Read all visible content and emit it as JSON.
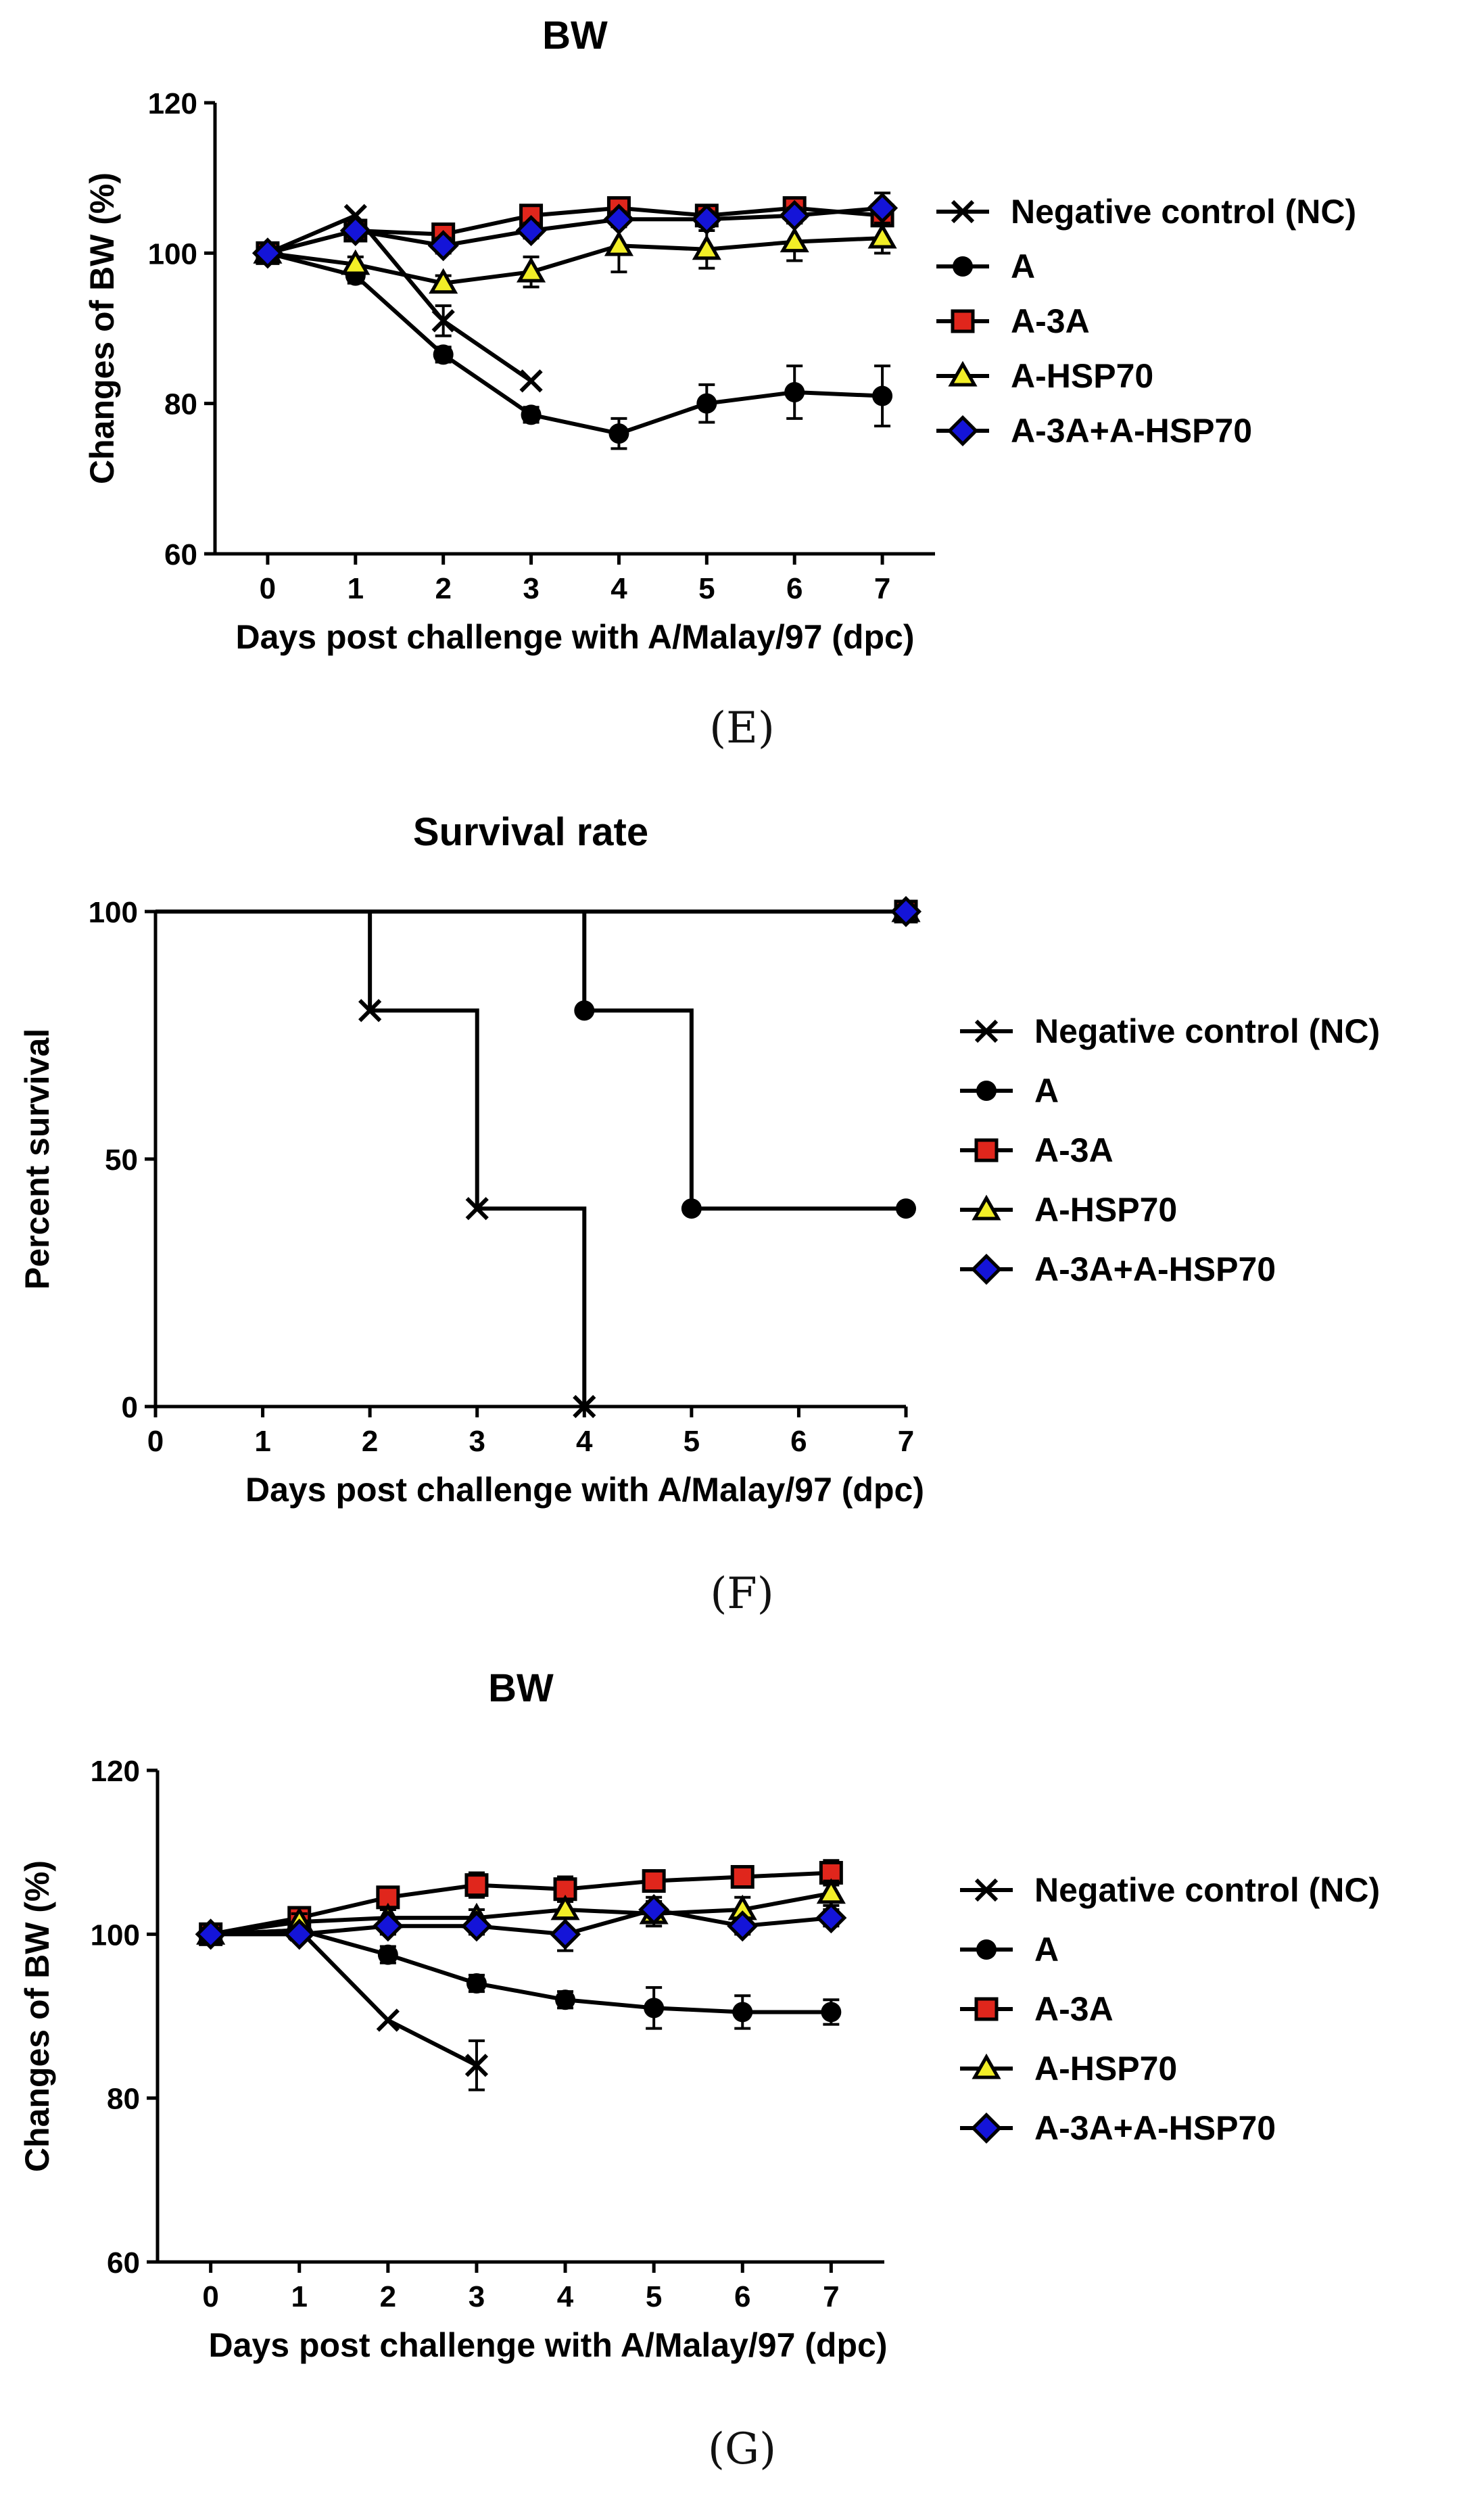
{
  "captions": {
    "e": "(E)",
    "f": "(F)",
    "g": "(G)"
  },
  "colors": {
    "NC": "#000000",
    "A": "#000000",
    "A-3A": "#e0261c",
    "A-HSP70": "#f2ee27",
    "A-3A+A-HSP70": "#1414d8"
  },
  "chart_data": [
    {
      "id": "E",
      "type": "line",
      "title": "BW",
      "xlabel": "Days post challenge with A/Malay/97 (dpc)",
      "ylabel": "Changes of BW (%)",
      "xlim": [
        -0.6,
        7.6
      ],
      "ylim": [
        60,
        120
      ],
      "xticks": [
        0,
        1,
        2,
        3,
        4,
        5,
        6,
        7
      ],
      "yticks": [
        60,
        80,
        100,
        120
      ],
      "legend_position": "right",
      "series": [
        {
          "name": "Negative control (NC)",
          "marker": "cross",
          "x": [
            0,
            1,
            2,
            3
          ],
          "y": [
            100,
            105,
            91,
            83
          ],
          "err": [
            0,
            0,
            2,
            0
          ]
        },
        {
          "name": "A",
          "marker": "circle",
          "x": [
            0,
            1,
            2,
            3,
            4,
            5,
            6,
            7
          ],
          "y": [
            100,
            97,
            86.5,
            78.5,
            76,
            80,
            81.5,
            81
          ],
          "err": [
            0,
            1,
            1,
            1,
            2,
            2.5,
            3.5,
            4
          ]
        },
        {
          "name": "A-3A",
          "marker": "square",
          "x": [
            0,
            1,
            2,
            3,
            4,
            5,
            6,
            7
          ],
          "y": [
            100,
            103,
            102.5,
            105,
            106,
            105,
            106,
            105
          ],
          "err": [
            0,
            1,
            1,
            1,
            1,
            1,
            1,
            1
          ]
        },
        {
          "name": "A-HSP70",
          "marker": "triangle",
          "x": [
            0,
            1,
            2,
            3,
            4,
            5,
            6,
            7
          ],
          "y": [
            100,
            98.5,
            96,
            97.5,
            101,
            100.5,
            101.5,
            102
          ],
          "err": [
            0,
            1,
            1,
            2,
            3.5,
            2.5,
            2.5,
            2
          ]
        },
        {
          "name": "A-3A+A-HSP70",
          "marker": "diamond",
          "x": [
            0,
            1,
            2,
            3,
            4,
            5,
            6,
            7
          ],
          "y": [
            100,
            103,
            101,
            103,
            104.5,
            104.5,
            105,
            106
          ],
          "err": [
            0,
            1,
            1,
            1,
            1,
            1,
            1,
            2
          ]
        }
      ]
    },
    {
      "id": "F",
      "type": "line",
      "step": true,
      "title": "Survival rate",
      "xlabel": "Days post challenge with A/Malay/97 (dpc)",
      "ylabel": "Percent survival",
      "xlim": [
        0,
        7
      ],
      "ylim": [
        0,
        100
      ],
      "xticks": [
        0,
        1,
        2,
        3,
        4,
        5,
        6,
        7
      ],
      "yticks": [
        0,
        50,
        100
      ],
      "legend_position": "right",
      "series": [
        {
          "name": "Negative control (NC)",
          "marker": "cross",
          "x": [
            0,
            2,
            3,
            4
          ],
          "y": [
            100,
            80,
            40,
            0
          ],
          "marks": [
            [
              2,
              80
            ],
            [
              3,
              40
            ],
            [
              4,
              0
            ]
          ]
        },
        {
          "name": "A",
          "marker": "circle",
          "x": [
            0,
            4,
            5,
            7
          ],
          "y": [
            100,
            80,
            40,
            40
          ],
          "marks": [
            [
              4,
              80
            ],
            [
              5,
              40
            ],
            [
              7,
              40
            ]
          ]
        },
        {
          "name": "A-3A",
          "marker": "square",
          "x": [
            0,
            7
          ],
          "y": [
            100,
            100
          ],
          "marks": [
            [
              7,
              100
            ]
          ]
        },
        {
          "name": "A-HSP70",
          "marker": "triangle",
          "x": [
            0,
            7
          ],
          "y": [
            100,
            100
          ],
          "marks": [
            [
              7,
              100
            ]
          ]
        },
        {
          "name": "A-3A+A-HSP70",
          "marker": "diamond",
          "x": [
            0,
            7
          ],
          "y": [
            100,
            100
          ],
          "marks": [
            [
              7,
              100
            ]
          ]
        }
      ]
    },
    {
      "id": "G",
      "type": "line",
      "title": "BW",
      "xlabel": "Days post challenge with A/Malay/97 (dpc)",
      "ylabel": "Changes of BW (%)",
      "xlim": [
        -0.6,
        7.6
      ],
      "ylim": [
        60,
        120
      ],
      "xticks": [
        0,
        1,
        2,
        3,
        4,
        5,
        6,
        7
      ],
      "yticks": [
        60,
        80,
        100,
        120
      ],
      "legend_position": "right",
      "series": [
        {
          "name": "Negative control (NC)",
          "marker": "cross",
          "x": [
            0,
            1,
            2,
            3
          ],
          "y": [
            100,
            100.5,
            89.5,
            84
          ],
          "err": [
            0,
            0,
            0,
            3
          ]
        },
        {
          "name": "A",
          "marker": "circle",
          "x": [
            0,
            1,
            2,
            3,
            4,
            5,
            6,
            7
          ],
          "y": [
            100,
            100.5,
            97.5,
            94,
            92,
            91,
            90.5,
            90.5
          ],
          "err": [
            0,
            0.5,
            1,
            1,
            1,
            2.5,
            2,
            1.5
          ]
        },
        {
          "name": "A-3A",
          "marker": "square",
          "x": [
            0,
            1,
            2,
            3,
            4,
            5,
            6,
            7
          ],
          "y": [
            100,
            102,
            104.5,
            106,
            105.5,
            106.5,
            107,
            107.5
          ],
          "err": [
            0,
            1,
            1,
            1.5,
            1.5,
            1,
            1,
            1.5
          ]
        },
        {
          "name": "A-HSP70",
          "marker": "triangle",
          "x": [
            0,
            1,
            2,
            3,
            4,
            5,
            6,
            7
          ],
          "y": [
            100,
            101.5,
            102,
            102,
            103,
            102.5,
            103,
            105
          ],
          "err": [
            0,
            1,
            1,
            1,
            1,
            1.5,
            1.5,
            1.5
          ]
        },
        {
          "name": "A-3A+A-HSP70",
          "marker": "diamond",
          "x": [
            0,
            1,
            2,
            3,
            4,
            5,
            6,
            7
          ],
          "y": [
            100,
            100,
            101,
            101,
            100,
            103,
            101,
            102
          ],
          "err": [
            0,
            0.5,
            1,
            1,
            2,
            1.5,
            1,
            1
          ]
        }
      ]
    }
  ]
}
